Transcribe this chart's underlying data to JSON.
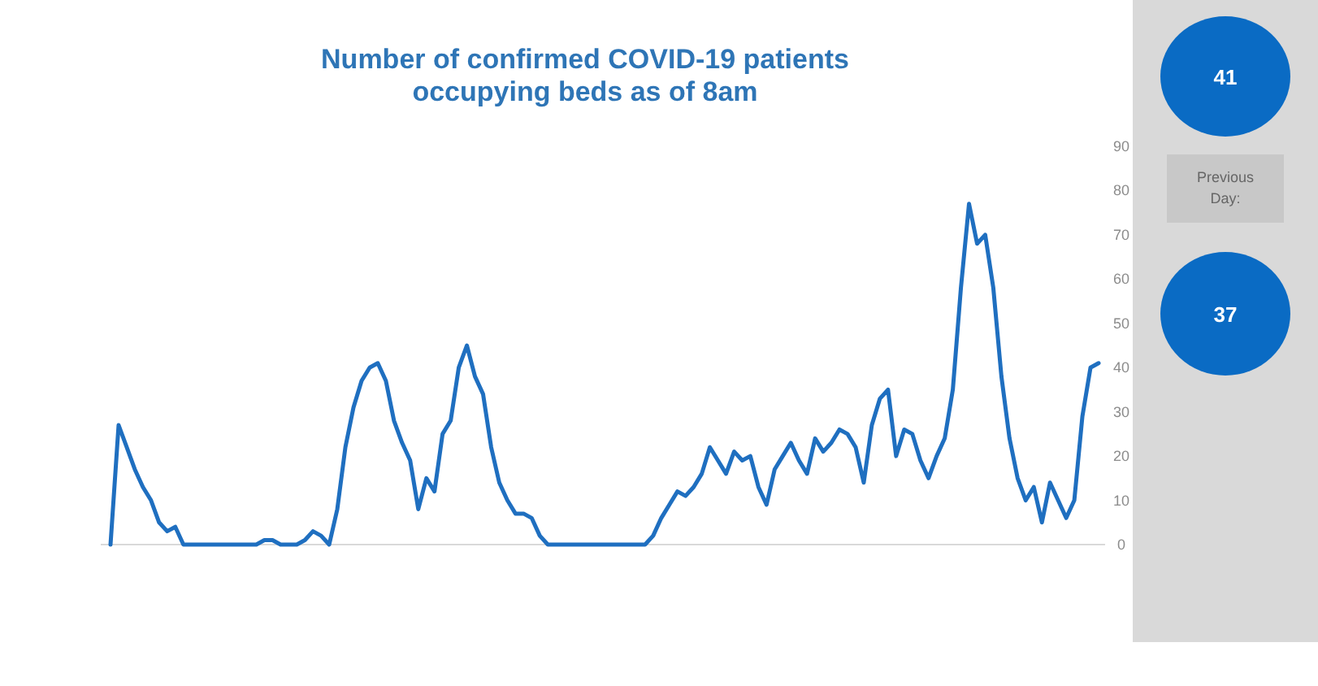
{
  "chart_data": {
    "type": "line",
    "title": "Number of confirmed COVID-19 patients\noccupying beds as of 8am",
    "categories": [
      null,
      null,
      null,
      null,
      null,
      null,
      null,
      null,
      null,
      null,
      null,
      null,
      null,
      null,
      null,
      null,
      null,
      null,
      null,
      null,
      null,
      null,
      null,
      null,
      null,
      null,
      null,
      null,
      null,
      null,
      null,
      null,
      null,
      null,
      null,
      null,
      null,
      null,
      null,
      null,
      null,
      null,
      null,
      null,
      null,
      null,
      null,
      null,
      null,
      null,
      null,
      null,
      null,
      null,
      null,
      null,
      null,
      null,
      null,
      null,
      null,
      null,
      null,
      null,
      null,
      null,
      null,
      null,
      null,
      null,
      null,
      null,
      null,
      null,
      null,
      null,
      null,
      null,
      null,
      null,
      null,
      null,
      null,
      null,
      null,
      null,
      null,
      null,
      null,
      null,
      null,
      null,
      null,
      null,
      null,
      null,
      null,
      null,
      null,
      null,
      null,
      null,
      null,
      null,
      null,
      null,
      null,
      null,
      null,
      null,
      null,
      null,
      null,
      null,
      null,
      null,
      null,
      null,
      null,
      null,
      null,
      null,
      null
    ],
    "series": [
      {
        "color": "#1f6fc0",
        "values": [
          0,
          27,
          22,
          17,
          13,
          10,
          5,
          3,
          4,
          0,
          0,
          0,
          0,
          0,
          0,
          0,
          0,
          0,
          0,
          1,
          1,
          0,
          0,
          0,
          1,
          3,
          2,
          0,
          8,
          22,
          31,
          37,
          40,
          41,
          37,
          28,
          23,
          19,
          8,
          15,
          12,
          25,
          28,
          40,
          45,
          38,
          34,
          22,
          14,
          10,
          7,
          7,
          6,
          2,
          0,
          0,
          0,
          0,
          0,
          0,
          0,
          0,
          0,
          0,
          0,
          0,
          0,
          2,
          6,
          9,
          12,
          11,
          13,
          16,
          22,
          19,
          16,
          21,
          19,
          20,
          13,
          9,
          17,
          20,
          23,
          19,
          16,
          24,
          21,
          23,
          26,
          25,
          22,
          14,
          27,
          33,
          35,
          20,
          26,
          25,
          19,
          15,
          20,
          24,
          35,
          58,
          77,
          68,
          70,
          58,
          38,
          24,
          15,
          10,
          13,
          5,
          14,
          10,
          6,
          10,
          29,
          40,
          41
        ]
      }
    ],
    "ylim": [
      0,
      90
    ],
    "yticks": [
      0,
      10,
      20,
      30,
      40,
      50,
      60,
      70,
      80,
      90
    ],
    "grid": false,
    "annotations": [
      "41",
      "Previous Day:",
      "37"
    ]
  }
}
